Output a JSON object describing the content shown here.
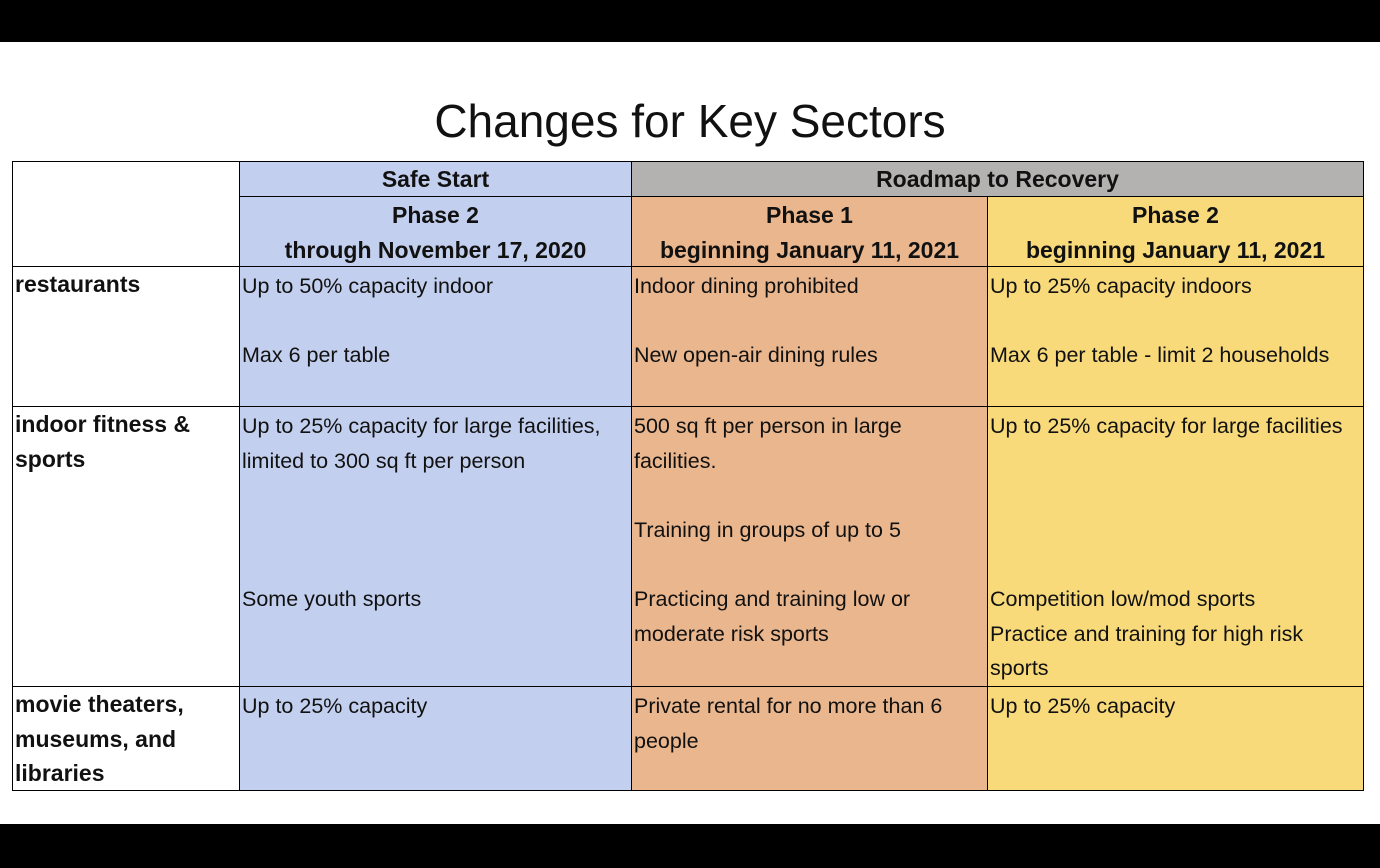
{
  "title": "Changes for Key Sectors",
  "table": {
    "group_headers": [
      "Safe Start",
      "Roadmap to Recovery"
    ],
    "column_headers": [
      {
        "phase": "Phase 2",
        "date": "through November 17, 2020"
      },
      {
        "phase": "Phase 1",
        "date": "beginning January 11, 2021"
      },
      {
        "phase": "Phase 2",
        "date": "beginning January 11, 2021"
      }
    ],
    "rows": [
      {
        "sector": "restaurants",
        "cells": [
          [
            "Up to 50% capacity indoor",
            "Max 6 per table"
          ],
          [
            "Indoor dining prohibited",
            "New open-air dining rules"
          ],
          [
            "Up to 25% capacity indoors",
            "Max 6 per table - limit 2 households"
          ]
        ]
      },
      {
        "sector": "indoor fitness & sports",
        "cells": [
          [
            "Up to 25% capacity for large facilities, limited to 300 sq ft per person",
            "Some youth sports"
          ],
          [
            "500 sq ft per person in large facilities.",
            "Training in groups of up to 5",
            "Practicing and training low or moderate risk sports"
          ],
          [
            "Up to 25% capacity for large facilities",
            "Competition low/mod sports",
            "Practice and training for high risk sports"
          ]
        ]
      },
      {
        "sector": "movie theaters, museums, and libraries",
        "cells": [
          [
            "Up to 25% capacity"
          ],
          [
            "Private rental for no more than 6 people"
          ],
          [
            "Up to 25% capacity"
          ]
        ]
      }
    ]
  }
}
